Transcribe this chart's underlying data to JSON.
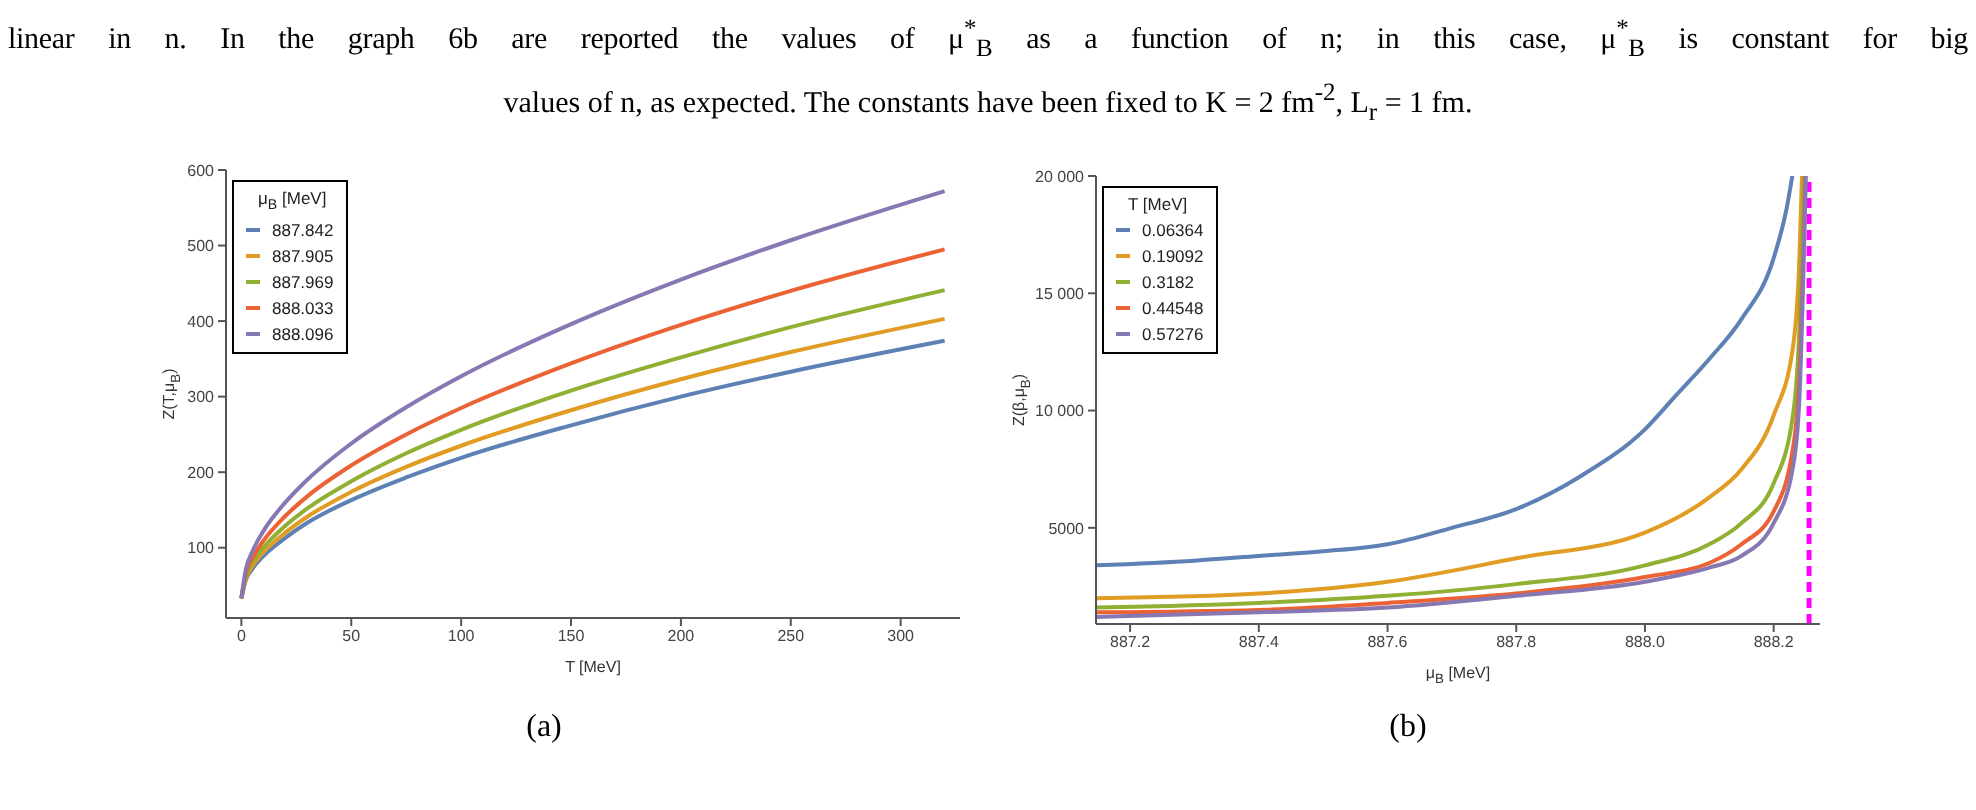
{
  "chart_data": [
    {
      "type": "line",
      "xlabel": "T [MeV]",
      "ylabel": "Z(T,μ$_{B}$)",
      "legend_title": "μ$_{B}$ [MeV]",
      "legend": "top left",
      "annotations": [
        "linear in n. In the graph 6b are reported the values of μ$^{*}$$_{B}$ as a function of n; in this case, μ$^{*}$$_{B}$ is constant for big",
        "values of n, as expected. The constants have been fixed to K = 2 fm$^{-2}$, L$_{r}$ = 1 fm.",
        "(a)"
      ],
      "xlim": [
        -7,
        327
      ],
      "xticks": [
        0,
        50,
        100,
        150,
        200,
        250,
        300
      ],
      "ylim": [
        7,
        600
      ],
      "yticks": [
        100,
        200,
        300,
        400,
        500,
        600
      ],
      "x": [
        0,
        2,
        5,
        10,
        20,
        30,
        50,
        75,
        100,
        150,
        200,
        250,
        320
      ],
      "series": [
        {
          "name": "887.842",
          "color": "#5e81b5",
          "values": [
            33,
            57,
            72,
            89,
            113,
            133,
            163,
            193,
            219,
            262,
            300,
            333,
            374
          ]
        },
        {
          "name": "887.905",
          "color": "#e19c24",
          "values": [
            33,
            59,
            76,
            94,
            120,
            141,
            174,
            207,
            235,
            282,
            323,
            359,
            403
          ]
        },
        {
          "name": "887.969",
          "color": "#8fb032",
          "values": [
            33,
            62,
            80,
            100,
            129,
            152,
            188,
            225,
            256,
            308,
            352,
            392,
            441
          ]
        },
        {
          "name": "888.033",
          "color": "#eb6235",
          "values": [
            33,
            66,
            86,
            109,
            142,
            168,
            209,
            250,
            285,
            344,
            395,
            440,
            495
          ]
        },
        {
          "name": "888.096",
          "color": "#8778b3",
          "values": [
            33,
            71,
            95,
            122,
            160,
            190,
            238,
            286,
            327,
            396,
            455,
            507,
            572
          ]
        }
      ]
    },
    {
      "type": "line",
      "xlabel": "μ$_{B}$ [MeV]",
      "ylabel": "Z(β,μ$_{B}$)",
      "legend_title": "T [MeV]",
      "legend": "top left",
      "annotations": [
        "(b)"
      ],
      "xlim": [
        887.147,
        888.272
      ],
      "xticks": [
        887.2,
        887.4,
        887.6,
        887.8,
        {
          "value": 888,
          "label": "888.0"
        },
        888.2
      ],
      "ylim": [
        900,
        20000
      ],
      "yticks": [
        5000,
        {
          "value": 10000,
          "label": "10 000"
        },
        {
          "value": 15000,
          "label": "15 000"
        },
        {
          "value": 20000,
          "label": "20 000"
        }
      ],
      "ref_lines": [
        {
          "axis": "x",
          "value": 888.255,
          "color": "#ff00ff",
          "line_style": "dashed"
        }
      ],
      "series": [
        {
          "name": "0.06364",
          "color": "#5e81b5",
          "x": [
            887.147,
            887.3,
            887.4,
            887.5,
            887.6,
            887.7,
            887.8,
            887.9,
            888.0,
            888.05,
            888.1,
            888.15,
            888.2,
            888.22,
            888.229
          ],
          "values": [
            3400,
            3600,
            3800,
            4000,
            4300,
            5000,
            5800,
            7200,
            9200,
            10700,
            12200,
            13900,
            16500,
            18600,
            20000
          ]
        },
        {
          "name": "0.19092",
          "color": "#e19c24",
          "x": [
            887.147,
            887.4,
            887.6,
            887.8,
            888.0,
            888.1,
            888.15,
            888.2,
            888.23,
            888.24,
            888.244
          ],
          "values": [
            2000,
            2200,
            2700,
            3700,
            4800,
            6300,
            7500,
            9800,
            12700,
            16500,
            20000
          ]
        },
        {
          "name": "0.3182",
          "color": "#8fb032",
          "x": [
            887.147,
            887.4,
            887.6,
            887.8,
            888.0,
            888.1,
            888.15,
            888.2,
            888.23,
            888.24,
            888.247
          ],
          "values": [
            1600,
            1800,
            2100,
            2600,
            3400,
            4300,
            5200,
            6900,
            9800,
            13500,
            20000
          ]
        },
        {
          "name": "0.44548",
          "color": "#eb6235",
          "x": [
            887.147,
            887.4,
            887.6,
            887.8,
            888.0,
            888.1,
            888.15,
            888.2,
            888.23,
            888.24,
            888.249
          ],
          "values": [
            1400,
            1500,
            1800,
            2200,
            2900,
            3500,
            4300,
            5700,
            8400,
            11500,
            20000
          ]
        },
        {
          "name": "0.57276",
          "color": "#8778b3",
          "x": [
            887.147,
            887.4,
            887.6,
            887.8,
            888.0,
            888.1,
            888.15,
            888.2,
            888.23,
            888.24,
            888.25
          ],
          "values": [
            1200,
            1400,
            1600,
            2100,
            2700,
            3300,
            3800,
            5200,
            7600,
            10500,
            20000
          ]
        }
      ]
    }
  ]
}
